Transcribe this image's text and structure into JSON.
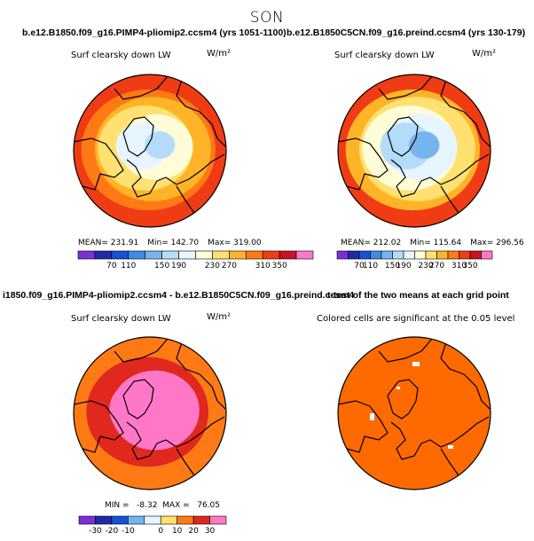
{
  "figure": {
    "title": "SON",
    "colors": {
      "text": "#000000",
      "land_outline": "#000000",
      "significance_fill": "#ff6a00"
    }
  },
  "panels": [
    {
      "id": "p1",
      "case_title": "b.e12.B1850.f09_g16.PIMP4-pliomip2.ccsm4 (yrs 1051-1100)",
      "var_label": "Surf clearsky down LW",
      "units": "W/m²",
      "stats": {
        "mean": "MEAN= 231.91",
        "min": "Min= 142.70",
        "max": "Max= 319.00"
      }
    },
    {
      "id": "p2",
      "case_title": "b.e12.B1850C5CN.f09_g16.preind.ccsm4 (yrs 130-179)",
      "var_label": "Surf clearsky down LW",
      "units": "W/m²",
      "stats": {
        "mean": "MEAN= 212.02",
        "min": "Min= 115.64",
        "max": "Max= 296.56"
      }
    },
    {
      "id": "p3",
      "case_title": "i1850.f09_g16.PIMP4-pliomip2.ccsm4 - b.e12.B1850C5CN.f09_g16.preind.ccsm4",
      "var_label": "Surf clearsky down LW",
      "units": "W/m²",
      "stats": {
        "minmax": "MIN =   -8.32  MAX =   76.05"
      }
    },
    {
      "id": "p4",
      "case_title": "t-test of the two means at each grid point",
      "var_label": "Colored cells are significant at the 0.05 level"
    }
  ],
  "chart_data": [
    {
      "type": "heatmap",
      "projection": "polar-stereographic",
      "title": "b.e12.B1850.f09_g16.PIMP4-pliomip2.ccsm4 (yrs 1051-1100)",
      "variable": "Surf clearsky down LW",
      "units": "W/m²",
      "colorbar": {
        "levels": [
          70,
          110,
          150,
          190,
          230,
          270,
          310,
          350
        ],
        "colors": [
          "#7b2fd8",
          "#1f2aa8",
          "#1452d6",
          "#3c8ce6",
          "#76b4f0",
          "#b4dcfa",
          "#e6f5ff",
          "#fffdd8",
          "#ffe070",
          "#ffb428",
          "#ff7a14",
          "#f03c14",
          "#c8141e",
          "#ff78c8"
        ]
      },
      "zones": [
        {
          "radius": 1.0,
          "value": 300
        },
        {
          "radius": 0.88,
          "value": 280
        },
        {
          "radius": 0.76,
          "value": 255
        },
        {
          "radius": 0.62,
          "value": 232
        },
        {
          "radius": 0.48,
          "value": 212
        },
        {
          "radius": 0.34,
          "value": 200
        },
        {
          "radius": 0.2,
          "value": 188
        }
      ],
      "mean": 231.91,
      "min": 142.7,
      "max": 319.0
    },
    {
      "type": "heatmap",
      "projection": "polar-stereographic",
      "title": "b.e12.B1850C5CN.f09_g16.preind.ccsm4 (yrs 130-179)",
      "variable": "Surf clearsky down LW",
      "units": "W/m²",
      "colorbar": {
        "levels": [
          70,
          110,
          150,
          190,
          230,
          270,
          310,
          350
        ],
        "colors": [
          "#7b2fd8",
          "#1f2aa8",
          "#1452d6",
          "#3c8ce6",
          "#76b4f0",
          "#b4dcfa",
          "#e6f5ff",
          "#fffdd8",
          "#ffe070",
          "#ffb428",
          "#ff7a14",
          "#f03c14",
          "#c8141e",
          "#ff78c8"
        ]
      },
      "zones": [
        {
          "radius": 1.0,
          "value": 290
        },
        {
          "radius": 0.88,
          "value": 262
        },
        {
          "radius": 0.76,
          "value": 238
        },
        {
          "radius": 0.62,
          "value": 215
        },
        {
          "radius": 0.48,
          "value": 198
        },
        {
          "radius": 0.34,
          "value": 182
        },
        {
          "radius": 0.2,
          "value": 165
        }
      ],
      "mean": 212.02,
      "min": 115.64,
      "max": 296.56
    },
    {
      "type": "heatmap",
      "projection": "polar-stereographic",
      "title": "i1850.f09_g16.PIMP4-pliomip2.ccsm4 - b.e12.B1850C5CN.f09_g16.preind.ccsm4",
      "variable": "Surf clearsky down LW",
      "units": "W/m²",
      "colorbar": {
        "levels": [
          -30,
          -20,
          -10,
          0,
          10,
          20,
          30
        ],
        "colors": [
          "#7b2fd8",
          "#1f2aa8",
          "#1452d6",
          "#76b4f0",
          "#e6f5ff",
          "#ffe070",
          "#ff7a14",
          "#e0281e",
          "#ff78c8"
        ]
      },
      "zones": [
        {
          "radius": 1.0,
          "value": 15
        },
        {
          "radius": 0.8,
          "value": 18
        },
        {
          "radius": 0.58,
          "value": 24
        },
        {
          "radius": 0.44,
          "value": 40
        }
      ],
      "min": -8.32,
      "max": 76.05
    },
    {
      "type": "heatmap",
      "projection": "polar-stereographic",
      "title": "t-test of the two means at each grid point",
      "variable": "Colored cells are significant at the 0.05 level",
      "significance_level": 0.05
    }
  ]
}
